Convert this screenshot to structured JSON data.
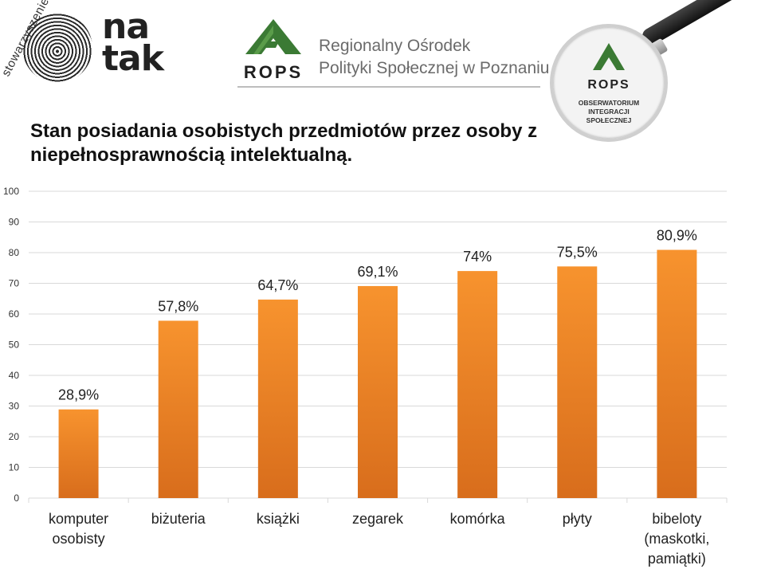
{
  "header": {
    "natak_org": "stowarzyszenie",
    "natak_word_line1": "na",
    "natak_word_line2": "tak",
    "rops_logo_text": "ROPS",
    "rops_name_line1": "Regionalny Ośrodek",
    "rops_name_line2": "Polityki Społecznej w Poznaniu",
    "observatory_logo_text": "ROPS",
    "observatory_line1": "OBSERWATORIUM",
    "observatory_line2": "INTEGRACJI",
    "observatory_line3": "SPOŁECZNEJ",
    "brand_green": "#3b7a34",
    "magnifier_icon": "magnifier-icon"
  },
  "title": "Stan posiadania osobistych przedmiotów przez osoby z niepełnosprawnością intelektualną.",
  "chart_data": {
    "type": "bar",
    "categories": [
      [
        "komputer",
        "osobisty"
      ],
      [
        "biżuteria"
      ],
      [
        "książki"
      ],
      [
        "zegarek"
      ],
      [
        "komórka"
      ],
      [
        "płyty"
      ],
      [
        "bibeloty",
        "(maskotki,",
        "pamiątki)"
      ]
    ],
    "values": [
      28.9,
      57.8,
      64.7,
      69.1,
      74,
      75.5,
      80.9
    ],
    "data_labels": [
      "28,9%",
      "57,8%",
      "64,7%",
      "69,1%",
      "74%",
      "75,5%",
      "80,9%"
    ],
    "ylim": [
      0,
      100
    ],
    "yticks": [
      0,
      10,
      20,
      30,
      40,
      50,
      60,
      70,
      80,
      90,
      100
    ],
    "grid": true,
    "legend": "none",
    "bar_color_top": "#f7932e",
    "bar_color_bottom": "#d86d1c",
    "grid_color": "#d9d9d9"
  }
}
